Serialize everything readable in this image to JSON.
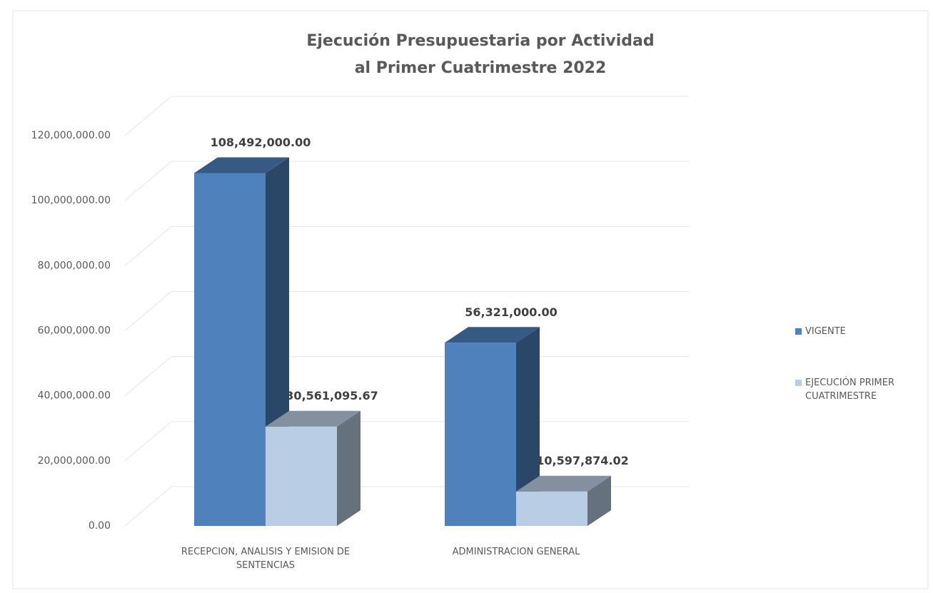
{
  "chart_data": {
    "type": "bar3d",
    "title": [
      "Ejecución Presupuestaria por Actividad",
      "al Primer Cuatrimestre 2022"
    ],
    "categories": [
      "RECEPCION, ANALISIS Y EMISION DE SENTENCIAS",
      "ADMINISTRACION GENERAL"
    ],
    "series": [
      {
        "name": "VIGENTE",
        "color": "#4f81bd",
        "values": [
          108492000,
          56321000
        ],
        "value_labels": [
          "108,492,000.00",
          "56,321,000.00"
        ]
      },
      {
        "name": "EJECUCIÓN PRIMER CUATRIMESTRE",
        "color": "#b9cde5",
        "values": [
          30561095.67,
          10597874.02
        ],
        "value_labels": [
          "30,561,095.67",
          "10,597,874.02"
        ]
      }
    ],
    "ylim": [
      0,
      120000000
    ],
    "yticks": [
      {
        "value": 0,
        "label": "0.00"
      },
      {
        "value": 20000000,
        "label": "20,000,000.00"
      },
      {
        "value": 40000000,
        "label": "40,000,000.00"
      },
      {
        "value": 60000000,
        "label": "60,000,000.00"
      },
      {
        "value": 80000000,
        "label": "80,000,000.00"
      },
      {
        "value": 100000000,
        "label": "100,000,000.00"
      },
      {
        "value": 120000000,
        "label": "120,000,000.00"
      }
    ],
    "grid": true,
    "legend": "right"
  }
}
